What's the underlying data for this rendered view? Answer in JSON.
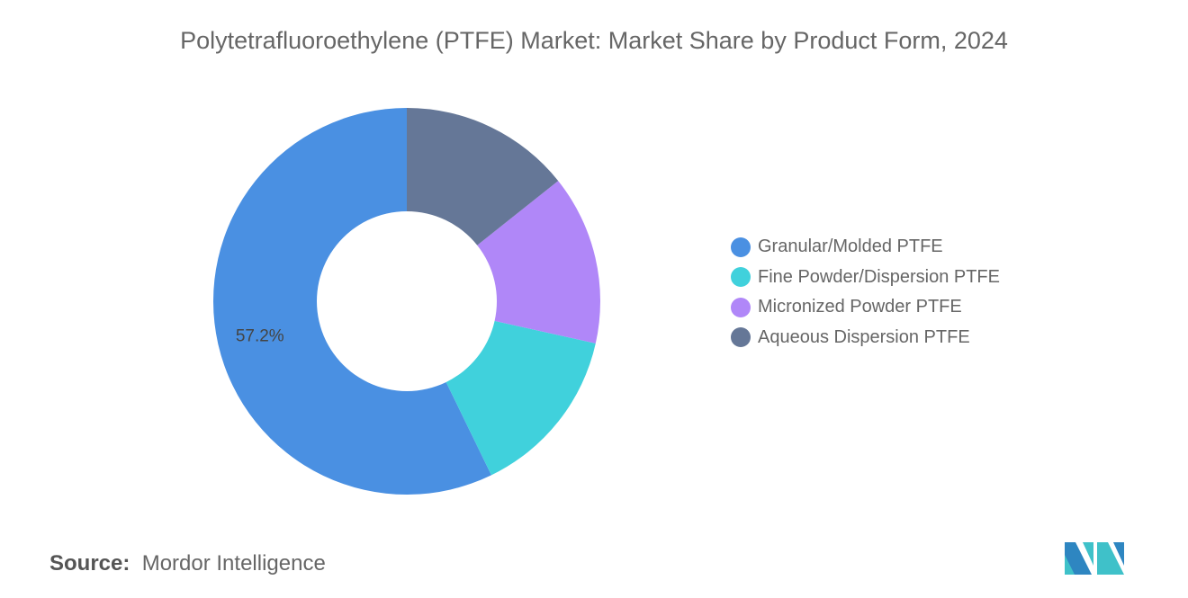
{
  "title": "Polytetrafluoroethylene (PTFE) Market: Market Share by Product Form, 2024",
  "source_label": "Source:",
  "source_value": "Mordor Intelligence",
  "logo_text": "Mordor Intelligence",
  "chart_data": {
    "type": "pie",
    "donut": true,
    "title": "Polytetrafluoroethylene (PTFE) Market: Market Share by Product Form, 2024",
    "legend_position": "right",
    "unit": "%",
    "slices": [
      {
        "name": "Granular/Molded PTFE",
        "value": 57.2,
        "color": "#4A90E2",
        "label": "57.2%"
      },
      {
        "name": "Fine Powder/Dispersion PTFE",
        "value": 14.3,
        "color": "#40D1DC",
        "label": ""
      },
      {
        "name": "Micronized Powder PTFE",
        "value": 14.2,
        "color": "#B087F8",
        "label": ""
      },
      {
        "name": "Aqueous Dispersion PTFE",
        "value": 14.3,
        "color": "#657797",
        "label": ""
      }
    ]
  }
}
